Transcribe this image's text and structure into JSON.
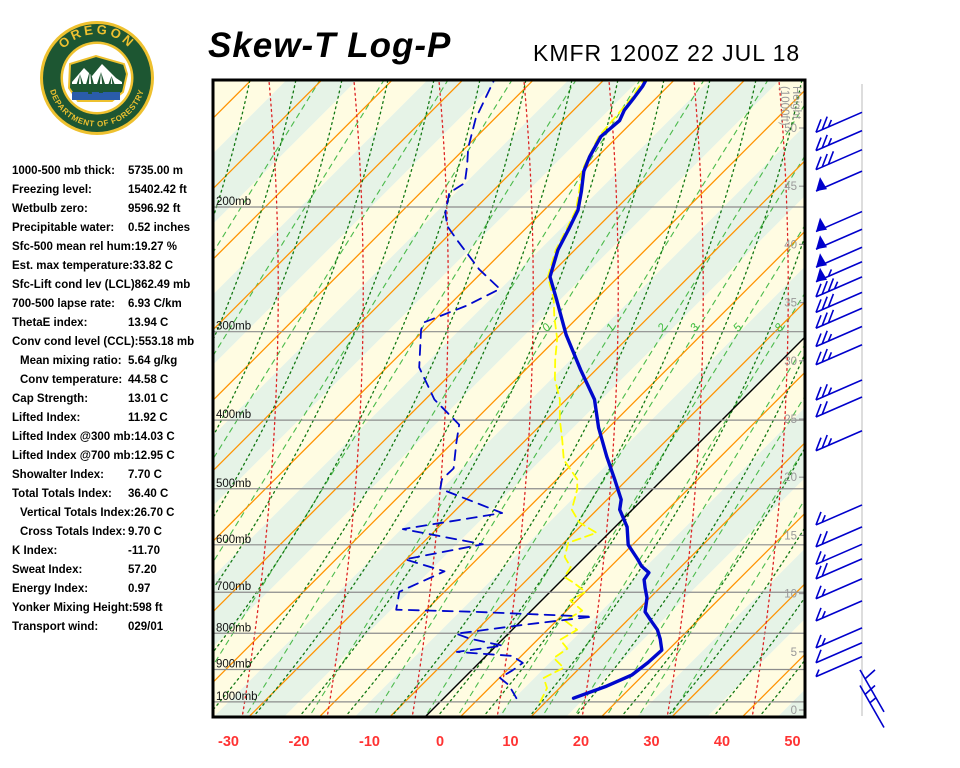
{
  "title": {
    "main": "Skew-T Log-P",
    "station": "KMFR 1200Z 22 JUL 18"
  },
  "logo": {
    "top_text": "OREGON",
    "bottom_text": "DEPARTMENT OF FORESTRY",
    "ring_color": "#1d5632",
    "gold": "#eec12f",
    "water_color": "#2a5caa"
  },
  "indices": {
    "rows": [
      {
        "label": "1000-500 mb thick:",
        "value": "5735.00 m",
        "indent": false
      },
      {
        "label": "Freezing level:",
        "value": "15402.42 ft",
        "indent": false
      },
      {
        "label": "Wetbulb zero:",
        "value": "9596.92 ft",
        "indent": false
      },
      {
        "label": "Precipitable water:",
        "value": "0.52 inches",
        "indent": false
      },
      {
        "label": "Sfc-500 mean rel hum:",
        "value": "19.27 %",
        "indent": false
      },
      {
        "label": "Est. max temperature:",
        "value": "33.82 C",
        "indent": false
      },
      {
        "label": "Sfc-Lift cond lev (LCL)",
        "value": "862.49 mb",
        "indent": false
      },
      {
        "label": "700-500 lapse rate:",
        "value": "6.93 C/km",
        "indent": false
      },
      {
        "label": "ThetaE index:",
        "value": "13.94 C",
        "indent": false
      },
      {
        "label": "Conv cond level (CCL):",
        "value": "553.18 mb",
        "indent": false
      },
      {
        "label": "Mean mixing ratio:",
        "value": "5.64 g/kg",
        "indent": true
      },
      {
        "label": "Conv temperature:",
        "value": "44.58 C",
        "indent": true
      },
      {
        "label": "Cap Strength:",
        "value": "13.01 C",
        "indent": false
      },
      {
        "label": "Lifted Index:",
        "value": "11.92 C",
        "indent": false
      },
      {
        "label": "Lifted Index @300 mb:",
        "value": "14.03 C",
        "indent": false
      },
      {
        "label": "Lifted Index @700 mb:",
        "value": "12.95 C",
        "indent": false
      },
      {
        "label": "Showalter Index:",
        "value": "7.70 C",
        "indent": false
      },
      {
        "label": "Total Totals Index:",
        "value": "36.40 C",
        "indent": false
      },
      {
        "label": "Vertical Totals Index:",
        "value": "26.70 C",
        "indent": true
      },
      {
        "label": "Cross Totals Index:",
        "value": "9.70 C",
        "indent": true
      },
      {
        "label": "K Index:",
        "value": "-11.70",
        "indent": false
      },
      {
        "label": "Sweat Index:",
        "value": "57.20",
        "indent": false
      },
      {
        "label": "Energy Index:",
        "value": "0.97",
        "indent": false
      },
      {
        "label": "Yonker Mixing Height:",
        "value": "598 ft",
        "indent": false
      },
      {
        "label": "Transport wind:",
        "value": "029/01",
        "indent": false
      }
    ]
  },
  "colors": {
    "band_yellow": "#fffce2",
    "band_green": "#e6f3e7",
    "isotherm_orange": "#ff9200",
    "zero_isotherm": "#000000",
    "dry_adiabat": "#117711",
    "moist_adiabat": "#dd2222",
    "mixing_ratio": "#4cbb4c",
    "mixing_label": "#3dbb3d",
    "pressure_grid": "#8c8c8c",
    "temp_axis_label": "#ff3333",
    "height_label": "#999999",
    "pressure_label": "#111111",
    "profile_blue": "#0008cc",
    "wetbulb_yellow": "#ffff00",
    "barb_blue": "#0000cc",
    "barb_ref_line": "#dddddd",
    "border": "#000000"
  },
  "chart_data": {
    "type": "skew-t-log-p",
    "station_id": "KMFR",
    "sounding_time": "1200Z 22 JUL 18",
    "pressure_levels_mb": [
      200,
      300,
      400,
      500,
      600,
      700,
      800,
      900,
      1000
    ],
    "pressure_label_suffix": "mb",
    "temp_axis": {
      "ticks_c": [
        -30,
        -20,
        -10,
        0,
        10,
        20,
        30,
        40,
        50
      ],
      "skew_deg": 45
    },
    "height_axis": {
      "label_line1": "Height",
      "label_line2": "(1000ft)",
      "ticks_1000ft": [
        0,
        5,
        10,
        15,
        20,
        25,
        30,
        35,
        40,
        45,
        50
      ]
    },
    "mixing_ratio_labels": [
      {
        "text": "0",
        "t_at_300mb": -37.3
      },
      {
        "text": "1",
        "t_at_300mb": -28.2
      },
      {
        "text": "2",
        "t_at_300mb": -20.9
      },
      {
        "text": "3",
        "t_at_300mb": -16.3
      },
      {
        "text": "5",
        "t_at_300mb": -10.2
      },
      {
        "text": "8",
        "t_at_300mb": -4.3
      }
    ],
    "temperature_profile_p_t": [
      [
        988,
        18.4
      ],
      [
        950,
        21.4
      ],
      [
        916,
        23.4
      ],
      [
        880,
        23.9
      ],
      [
        845,
        24.1
      ],
      [
        815,
        22.3
      ],
      [
        791,
        20.6
      ],
      [
        768,
        18.4
      ],
      [
        746,
        16.3
      ],
      [
        713,
        14.6
      ],
      [
        690,
        12.9
      ],
      [
        672,
        11.6
      ],
      [
        657,
        11.3
      ],
      [
        643,
        9.3
      ],
      [
        629,
        7.8
      ],
      [
        600,
        4.4
      ],
      [
        566,
        1.7
      ],
      [
        535,
        -1.8
      ],
      [
        518,
        -3.0
      ],
      [
        485,
        -6.8
      ],
      [
        450,
        -11.2
      ],
      [
        410,
        -16.4
      ],
      [
        374,
        -21.0
      ],
      [
        340,
        -27.1
      ],
      [
        303,
        -34.2
      ],
      [
        270,
        -40.6
      ],
      [
        251,
        -44.7
      ],
      [
        230,
        -47.4
      ],
      [
        215,
        -48.8
      ],
      [
        202,
        -50.2
      ],
      [
        190,
        -52.4
      ],
      [
        178,
        -54.9
      ],
      [
        170,
        -56.1
      ],
      [
        159,
        -57.4
      ],
      [
        151,
        -57.0
      ],
      [
        146,
        -57.8
      ],
      [
        140,
        -58.2
      ],
      [
        135,
        -58.6
      ],
      [
        131,
        -59.2
      ]
    ],
    "dewpoint_profile_p_t": [
      [
        988,
        10.3
      ],
      [
        947,
        7.4
      ],
      [
        925,
        5.1
      ],
      [
        902,
        5.8
      ],
      [
        881,
        6.2
      ],
      [
        861,
        3.7
      ],
      [
        850,
        -4.7
      ],
      [
        833,
        0.9
      ],
      [
        814,
        -4.8
      ],
      [
        801,
        -7.4
      ],
      [
        778,
        1.0
      ],
      [
        758,
        9.5
      ],
      [
        746,
        -7.9
      ],
      [
        741,
        -19.3
      ],
      [
        699,
        -21.4
      ],
      [
        654,
        -17.9
      ],
      [
        629,
        -25.2
      ],
      [
        599,
        -16.3
      ],
      [
        570,
        -29.8
      ],
      [
        541,
        -18.0
      ],
      [
        500,
        -30.2
      ],
      [
        485,
        -31.3
      ],
      [
        468,
        -31.2
      ],
      [
        430,
        -34.5
      ],
      [
        406,
        -36.6
      ],
      [
        374,
        -43.7
      ],
      [
        337,
        -50.4
      ],
      [
        298,
        -55.5
      ],
      [
        291,
        -56.1
      ],
      [
        276,
        -52.5
      ],
      [
        261,
        -50.1
      ],
      [
        245,
        -55.8
      ],
      [
        223,
        -63.0
      ],
      [
        213,
        -66.4
      ],
      [
        204,
        -68.6
      ],
      [
        191,
        -70.9
      ],
      [
        185,
        -70.1
      ],
      [
        175,
        -72.2
      ],
      [
        165,
        -74.6
      ],
      [
        150,
        -77.7
      ],
      [
        132,
        -80.6
      ]
    ],
    "wetbulb_profile_p_t": [
      [
        1000,
        14.2
      ],
      [
        956,
        13.2
      ],
      [
        925,
        11.3
      ],
      [
        895,
        12.7
      ],
      [
        867,
        9.9
      ],
      [
        841,
        10.5
      ],
      [
        817,
        8.2
      ],
      [
        791,
        9.2
      ],
      [
        768,
        6.2
      ],
      [
        743,
        7.2
      ],
      [
        719,
        4.1
      ],
      [
        699,
        5.0
      ],
      [
        679,
        2.1
      ],
      [
        666,
        -0.1
      ],
      [
        645,
        -0.6
      ],
      [
        624,
        -2.9
      ],
      [
        596,
        -4.4
      ],
      [
        577,
        -1.8
      ],
      [
        558,
        -5.7
      ],
      [
        535,
        -8.6
      ],
      [
        501,
        -10.7
      ],
      [
        485,
        -12.1
      ],
      [
        455,
        -16.8
      ],
      [
        426,
        -19.9
      ],
      [
        399,
        -23.1
      ],
      [
        374,
        -25.9
      ],
      [
        350,
        -29.5
      ],
      [
        328,
        -32.3
      ],
      [
        307,
        -34.9
      ],
      [
        286,
        -38.4
      ],
      [
        270,
        -41.0
      ],
      [
        251,
        -45.0
      ],
      [
        230,
        -47.7
      ],
      [
        215,
        -49.1
      ],
      [
        202,
        -50.5
      ],
      [
        190,
        -52.7
      ],
      [
        178,
        -55.2
      ],
      [
        159,
        -57.7
      ],
      [
        140,
        -58.5
      ],
      [
        131,
        -59.5
      ]
    ],
    "wind_barbs": [
      {
        "p": 147,
        "flags": 0,
        "fulls": 2,
        "halfs": 1,
        "dir": "NE",
        "speed_kt": 25
      },
      {
        "p": 156,
        "flags": 0,
        "fulls": 2,
        "halfs": 1,
        "dir": "NE",
        "speed_kt": 25
      },
      {
        "p": 166,
        "flags": 0,
        "fulls": 3,
        "halfs": 0,
        "dir": "NE",
        "speed_kt": 30
      },
      {
        "p": 178,
        "flags": 1,
        "fulls": 0,
        "halfs": 0,
        "dir": "NE",
        "speed_kt": 50
      },
      {
        "p": 203,
        "flags": 1,
        "fulls": 0,
        "halfs": 0,
        "dir": "NE",
        "speed_kt": 50
      },
      {
        "p": 215,
        "flags": 1,
        "fulls": 0,
        "halfs": 0,
        "dir": "NE",
        "speed_kt": 50
      },
      {
        "p": 228,
        "flags": 1,
        "fulls": 0,
        "halfs": 0,
        "dir": "NE",
        "speed_kt": 50
      },
      {
        "p": 239,
        "flags": 1,
        "fulls": 0,
        "halfs": 1,
        "dir": "NE",
        "speed_kt": 55
      },
      {
        "p": 251,
        "flags": 0,
        "fulls": 3,
        "halfs": 1,
        "dir": "NE",
        "speed_kt": 35
      },
      {
        "p": 264,
        "flags": 0,
        "fulls": 3,
        "halfs": 0,
        "dir": "NE",
        "speed_kt": 30
      },
      {
        "p": 278,
        "flags": 0,
        "fulls": 3,
        "halfs": 0,
        "dir": "NE",
        "speed_kt": 30
      },
      {
        "p": 295,
        "flags": 0,
        "fulls": 2,
        "halfs": 1,
        "dir": "NE",
        "speed_kt": 25
      },
      {
        "p": 313,
        "flags": 0,
        "fulls": 2,
        "halfs": 1,
        "dir": "NE",
        "speed_kt": 25
      },
      {
        "p": 351,
        "flags": 0,
        "fulls": 2,
        "halfs": 1,
        "dir": "NE",
        "speed_kt": 25
      },
      {
        "p": 371,
        "flags": 0,
        "fulls": 2,
        "halfs": 0,
        "dir": "NE",
        "speed_kt": 20
      },
      {
        "p": 414,
        "flags": 0,
        "fulls": 2,
        "halfs": 1,
        "dir": "NE",
        "speed_kt": 25
      },
      {
        "p": 527,
        "flags": 0,
        "fulls": 1,
        "halfs": 1,
        "dir": "NE",
        "speed_kt": 15
      },
      {
        "p": 566,
        "flags": 0,
        "fulls": 2,
        "halfs": 0,
        "dir": "NE",
        "speed_kt": 20
      },
      {
        "p": 599,
        "flags": 0,
        "fulls": 1,
        "halfs": 1,
        "dir": "NE",
        "speed_kt": 15
      },
      {
        "p": 628,
        "flags": 0,
        "fulls": 2,
        "halfs": 0,
        "dir": "NE",
        "speed_kt": 20
      },
      {
        "p": 670,
        "flags": 0,
        "fulls": 1,
        "halfs": 1,
        "dir": "NE",
        "speed_kt": 15
      },
      {
        "p": 720,
        "flags": 0,
        "fulls": 1,
        "halfs": 1,
        "dir": "NE",
        "speed_kt": 15
      },
      {
        "p": 786,
        "flags": 0,
        "fulls": 1,
        "halfs": 1,
        "dir": "NE",
        "speed_kt": 15
      },
      {
        "p": 825,
        "flags": 0,
        "fulls": 1,
        "halfs": 0,
        "dir": "NE",
        "speed_kt": 10
      },
      {
        "p": 863,
        "flags": 0,
        "fulls": 0,
        "halfs": 1,
        "dir": "NE",
        "speed_kt": 5
      },
      {
        "p": 901,
        "flags": 0,
        "fulls": 1,
        "halfs": 0,
        "dir": "S",
        "speed_kt": 10
      },
      {
        "p": 948,
        "flags": 0,
        "fulls": 1,
        "halfs": 1,
        "dir": "S",
        "speed_kt": 15
      }
    ]
  }
}
